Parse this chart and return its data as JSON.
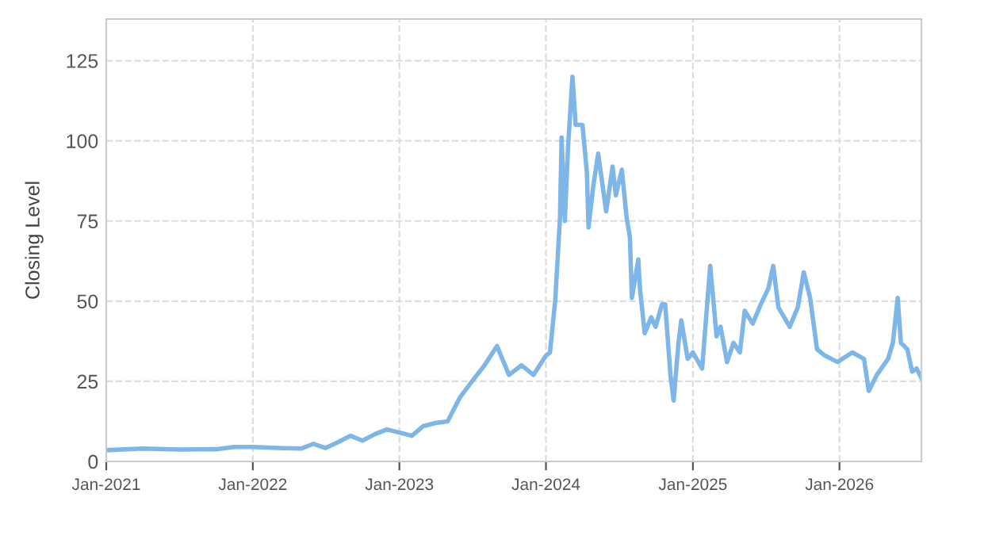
{
  "chart_data": {
    "type": "line",
    "ylabel": "Closing Level",
    "ylim": [
      0,
      138
    ],
    "yticks": [
      0,
      25,
      50,
      75,
      100,
      125
    ],
    "xlim": [
      "2021-01-01",
      "2026-07-24"
    ],
    "xticks": [
      {
        "value": "2021-01-01",
        "label": "Jan-2021"
      },
      {
        "value": "2022-01-01",
        "label": "Jan-2022"
      },
      {
        "value": "2023-01-01",
        "label": "Jan-2023"
      },
      {
        "value": "2024-01-01",
        "label": "Jan-2024"
      },
      {
        "value": "2025-01-01",
        "label": "Jan-2025"
      },
      {
        "value": "2026-01-01",
        "label": "Jan-2026"
      }
    ],
    "grid": true,
    "marker": "none",
    "line_style": "solid",
    "series": [
      {
        "color": "#7eb6e8",
        "x": [
          "2021-01-01",
          "2021-04-01",
          "2021-07-01",
          "2021-10-01",
          "2021-11-15",
          "2022-01-01",
          "2022-03-01",
          "2022-05-01",
          "2022-06-01",
          "2022-07-01",
          "2022-08-01",
          "2022-09-01",
          "2022-10-01",
          "2022-11-01",
          "2022-12-01",
          "2023-01-01",
          "2023-02-01",
          "2023-03-01",
          "2023-04-01",
          "2023-05-01",
          "2023-06-01",
          "2023-07-01",
          "2023-08-01",
          "2023-09-01",
          "2023-10-01",
          "2023-11-01",
          "2023-12-01",
          "2024-01-01",
          "2024-01-11",
          "2024-01-24",
          "2024-02-05",
          "2024-02-09",
          "2024-02-17",
          "2024-02-25",
          "2024-03-07",
          "2024-03-15",
          "2024-04-01",
          "2024-04-12",
          "2024-04-16",
          "2024-04-28",
          "2024-05-10",
          "2024-05-30",
          "2024-06-15",
          "2024-06-23",
          "2024-07-08",
          "2024-07-20",
          "2024-07-28",
          "2024-08-02",
          "2024-08-18",
          "2024-08-22",
          "2024-09-03",
          "2024-09-19",
          "2024-09-30",
          "2024-10-16",
          "2024-10-24",
          "2024-11-06",
          "2024-11-14",
          "2024-11-26",
          "2024-12-03",
          "2024-12-19",
          "2025-01-01",
          "2025-01-24",
          "2025-02-13",
          "2025-03-01",
          "2025-03-11",
          "2025-03-27",
          "2025-04-12",
          "2025-04-28",
          "2025-05-10",
          "2025-05-30",
          "2025-06-19",
          "2025-07-08",
          "2025-07-20",
          "2025-08-02",
          "2025-08-30",
          "2025-09-19",
          "2025-10-04",
          "2025-10-20",
          "2025-11-06",
          "2025-11-26",
          "2025-12-27",
          "2026-02-02",
          "2026-03-03",
          "2026-03-15",
          "2026-04-04",
          "2026-05-02",
          "2026-05-14",
          "2026-05-26",
          "2026-06-03",
          "2026-06-19",
          "2026-07-01",
          "2026-07-12",
          "2026-07-24"
        ],
        "values": [
          3.5,
          4,
          3.7,
          3.8,
          4.5,
          4.5,
          4.2,
          4.0,
          5.5,
          4.2,
          6.0,
          8.0,
          6.5,
          8.5,
          10,
          9,
          8,
          11,
          12,
          12.5,
          20,
          25,
          30,
          36,
          27,
          30,
          27,
          33,
          34,
          50,
          76,
          101,
          75,
          98,
          120,
          105,
          105,
          90,
          73,
          86,
          96,
          78,
          92,
          83,
          91,
          76,
          70,
          51,
          63,
          54,
          40,
          45,
          42,
          49,
          49,
          27,
          19,
          37,
          44,
          32,
          34,
          29,
          61,
          39,
          42,
          31,
          37,
          34,
          47,
          43,
          49,
          54,
          61,
          48,
          42,
          48,
          59,
          51,
          35,
          33,
          31,
          34,
          32,
          22,
          27,
          32,
          37,
          51,
          37,
          35,
          28,
          29,
          26
        ]
      }
    ]
  }
}
